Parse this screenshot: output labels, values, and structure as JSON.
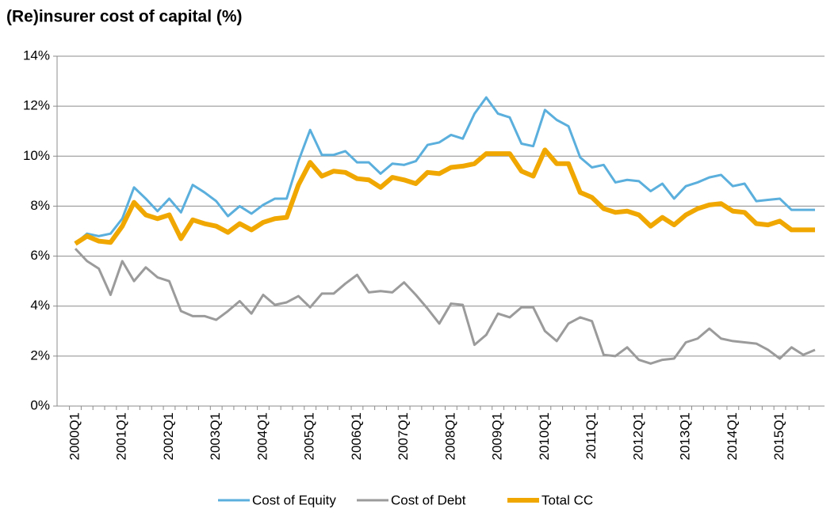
{
  "chart_data": {
    "type": "line",
    "title": "(Re)insurer cost of capital (%)",
    "categories": [
      "2000Q1",
      null,
      null,
      null,
      "2001Q1",
      null,
      null,
      null,
      "2002Q1",
      null,
      null,
      null,
      "2003Q1",
      null,
      null,
      null,
      "2004Q1",
      null,
      null,
      null,
      "2005Q1",
      null,
      null,
      null,
      "2006Q1",
      null,
      null,
      null,
      "2007Q1",
      null,
      null,
      null,
      "2008Q1",
      null,
      null,
      null,
      "2009Q1",
      null,
      null,
      null,
      "2010Q1",
      null,
      null,
      null,
      "2011Q1",
      null,
      null,
      null,
      "2012Q1",
      null,
      null,
      null,
      "2013Q1",
      null,
      null,
      null,
      "2014Q1",
      null,
      null,
      null,
      "2015Q1",
      null,
      null,
      null
    ],
    "series": [
      {
        "name": "Cost of Equity",
        "color": "#5aafdc",
        "width": 3,
        "values": [
          6.5,
          6.9,
          6.8,
          6.9,
          7.5,
          8.75,
          8.3,
          7.8,
          8.3,
          7.75,
          8.85,
          8.55,
          8.2,
          7.6,
          8.0,
          7.7,
          8.05,
          8.3,
          8.3,
          9.8,
          11.05,
          10.05,
          10.05,
          10.2,
          9.75,
          9.75,
          9.3,
          9.7,
          9.65,
          9.8,
          10.45,
          10.55,
          10.85,
          10.7,
          11.7,
          12.35,
          11.7,
          11.55,
          10.5,
          10.4,
          11.85,
          11.45,
          11.2,
          9.95,
          9.55,
          9.65,
          8.95,
          9.05,
          9.0,
          8.6,
          8.9,
          8.3,
          8.8,
          8.95,
          9.15,
          9.25,
          8.8,
          8.9,
          8.2,
          8.25,
          8.3,
          7.85,
          7.85,
          7.85
        ]
      },
      {
        "name": "Cost of Debt",
        "color": "#9b9b9b",
        "width": 3,
        "values": [
          6.3,
          5.8,
          5.5,
          4.45,
          5.8,
          5.0,
          5.55,
          5.15,
          5.0,
          3.8,
          3.6,
          3.6,
          3.45,
          3.8,
          4.2,
          3.7,
          4.45,
          4.05,
          4.15,
          4.4,
          3.95,
          4.5,
          4.5,
          4.9,
          5.25,
          4.55,
          4.6,
          4.55,
          4.95,
          4.45,
          3.9,
          3.3,
          4.1,
          4.05,
          2.45,
          2.85,
          3.7,
          3.55,
          3.95,
          3.95,
          3.0,
          2.6,
          3.3,
          3.55,
          3.4,
          2.05,
          2.0,
          2.35,
          1.85,
          1.7,
          1.85,
          1.9,
          2.55,
          2.7,
          3.1,
          2.7,
          2.6,
          2.55,
          2.5,
          2.25,
          1.9,
          2.35,
          2.05,
          2.25
        ]
      },
      {
        "name": "Total CC",
        "color": "#f0a800",
        "width": 6,
        "values": [
          6.5,
          6.8,
          6.6,
          6.55,
          7.2,
          8.15,
          7.65,
          7.5,
          7.65,
          6.7,
          7.45,
          7.3,
          7.2,
          6.95,
          7.3,
          7.05,
          7.35,
          7.5,
          7.55,
          8.85,
          9.75,
          9.2,
          9.4,
          9.35,
          9.1,
          9.05,
          8.75,
          9.15,
          9.05,
          8.9,
          9.35,
          9.3,
          9.55,
          9.6,
          9.7,
          10.1,
          10.1,
          10.1,
          9.4,
          9.2,
          10.25,
          9.7,
          9.7,
          8.55,
          8.35,
          7.9,
          7.75,
          7.8,
          7.65,
          7.2,
          7.55,
          7.25,
          7.65,
          7.9,
          8.05,
          8.1,
          7.8,
          7.75,
          7.3,
          7.25,
          7.4,
          7.05,
          7.05,
          7.05
        ]
      }
    ],
    "ylim": [
      0,
      14
    ],
    "yticks": [
      {
        "value": 0,
        "label": "0%"
      },
      {
        "value": 2,
        "label": "2%"
      },
      {
        "value": 4,
        "label": "4%"
      },
      {
        "value": 6,
        "label": "6%"
      },
      {
        "value": 8,
        "label": "8%"
      },
      {
        "value": 10,
        "label": "10%"
      },
      {
        "value": 12,
        "label": "12%"
      },
      {
        "value": 14,
        "label": "14%"
      }
    ],
    "grid": true,
    "legend": "bottom"
  }
}
